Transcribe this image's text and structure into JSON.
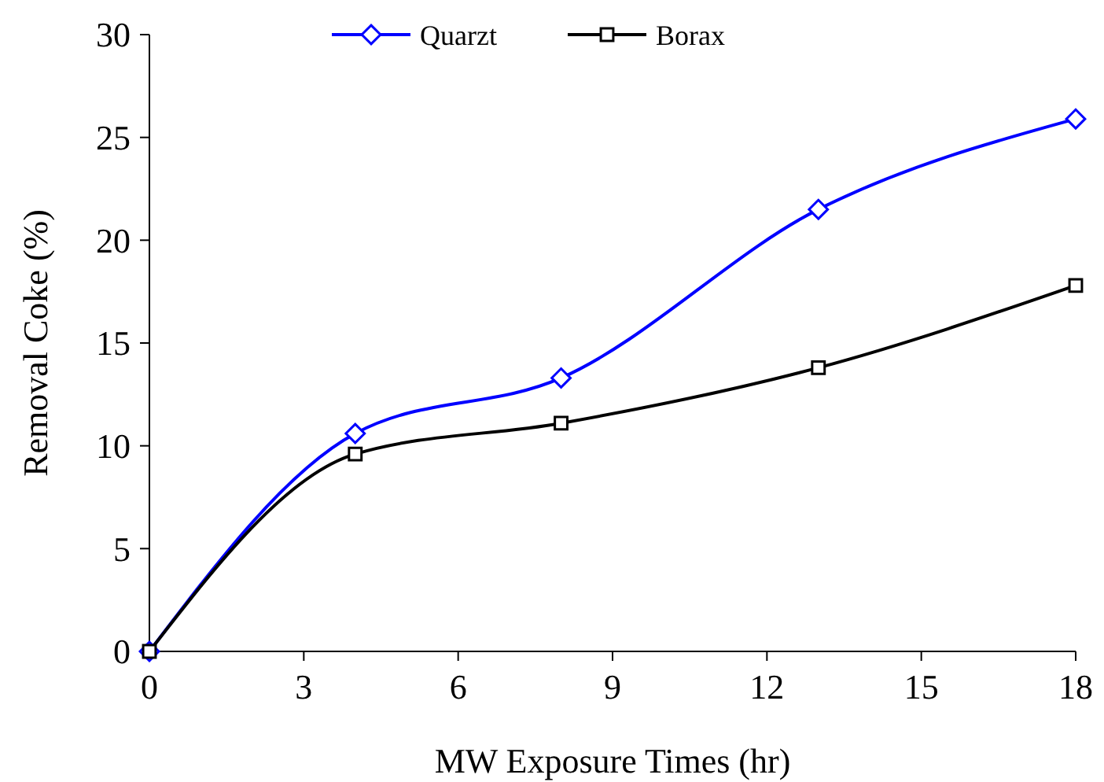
{
  "chart_data": {
    "type": "line",
    "xlabel": "MW Exposure Times (hr)",
    "ylabel": "Removal Coke (%)",
    "x": [
      0,
      4,
      8,
      13,
      18
    ],
    "series": [
      {
        "name": "Quarzt",
        "color": "#0000ff",
        "marker": "diamond",
        "values": [
          0,
          10.6,
          13.3,
          21.5,
          25.9
        ]
      },
      {
        "name": "Borax",
        "color": "#000000",
        "marker": "square",
        "values": [
          0,
          9.6,
          11.1,
          13.8,
          17.8
        ]
      }
    ],
    "xlim": [
      0,
      18
    ],
    "xticks": [
      0,
      3,
      6,
      9,
      12,
      15,
      18
    ],
    "ylim": [
      0,
      30
    ],
    "yticks": [
      0,
      5,
      10,
      15,
      20,
      25,
      30
    ],
    "legend": "top",
    "grid": false
  }
}
